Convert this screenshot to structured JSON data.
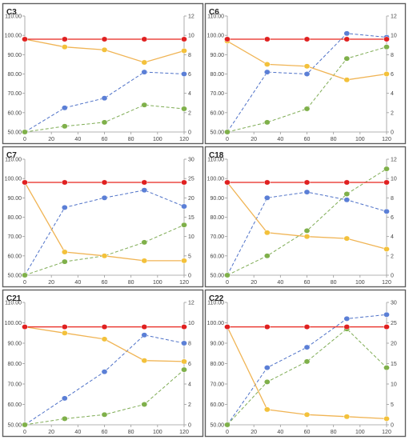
{
  "chart_data": [
    {
      "type": "line",
      "title": "C3",
      "x": [
        0,
        30,
        60,
        90,
        120
      ],
      "xlim": [
        0,
        120
      ],
      "xticks": [
        0,
        20,
        40,
        60,
        80,
        100,
        120
      ],
      "ylim": [
        50,
        110
      ],
      "yticks": [
        "50.00",
        "60.00",
        "70.00",
        "80.00",
        "90.00",
        "100.00",
        "110.00"
      ],
      "y2lim": [
        0,
        12
      ],
      "y2ticks": [
        0,
        2,
        4,
        6,
        8,
        10,
        12
      ],
      "grid": false,
      "legend": "none",
      "series": [
        {
          "axis": "left",
          "color": "#e8241c",
          "marker": "#e02020",
          "dashed": false,
          "values": [
            98,
            98,
            98,
            98,
            98
          ]
        },
        {
          "axis": "left",
          "color": "#f0b454",
          "marker": "#f3c13b",
          "dashed": false,
          "values": [
            98,
            94,
            92.5,
            86,
            92
          ]
        },
        {
          "axis": "right",
          "color": "#4f72c8",
          "marker": "#5b7fd6",
          "dashed": true,
          "values": [
            0,
            2.5,
            3.5,
            6.2,
            6
          ]
        },
        {
          "axis": "right",
          "color": "#7fac55",
          "marker": "#7fb04a",
          "dashed": true,
          "values": [
            0,
            0.6,
            1,
            2.8,
            2.4
          ]
        }
      ]
    },
    {
      "type": "line",
      "title": "C6",
      "x": [
        0,
        30,
        60,
        90,
        120
      ],
      "xlim": [
        0,
        120
      ],
      "xticks": [
        0,
        20,
        40,
        60,
        80,
        100,
        120
      ],
      "ylim": [
        50,
        110
      ],
      "yticks": [
        "50.00",
        "60.00",
        "70.00",
        "80.00",
        "90.00",
        "100.00",
        "110.00"
      ],
      "y2lim": [
        0,
        12
      ],
      "y2ticks": [
        0,
        2,
        4,
        6,
        8,
        10,
        12
      ],
      "grid": false,
      "legend": "none",
      "series": [
        {
          "axis": "left",
          "color": "#e8241c",
          "marker": "#e02020",
          "dashed": false,
          "values": [
            98,
            98,
            98,
            98,
            98
          ]
        },
        {
          "axis": "left",
          "color": "#f0b454",
          "marker": "#f3c13b",
          "dashed": false,
          "values": [
            97,
            85,
            84,
            77,
            80
          ]
        },
        {
          "axis": "right",
          "color": "#4f72c8",
          "marker": "#5b7fd6",
          "dashed": true,
          "values": [
            0,
            6.2,
            6,
            10.2,
            9.8
          ]
        },
        {
          "axis": "right",
          "color": "#7fac55",
          "marker": "#7fb04a",
          "dashed": true,
          "values": [
            0,
            1,
            2.4,
            7.6,
            8.8
          ]
        }
      ]
    },
    {
      "type": "line",
      "title": "C7",
      "x": [
        0,
        30,
        60,
        90,
        120
      ],
      "xlim": [
        0,
        120
      ],
      "xticks": [
        0,
        20,
        40,
        60,
        80,
        100,
        120
      ],
      "ylim": [
        50,
        110
      ],
      "yticks": [
        "50.00",
        "60.00",
        "70.00",
        "80.00",
        "90.00",
        "100.00",
        "110.00"
      ],
      "y2lim": [
        0,
        30
      ],
      "y2ticks": [
        0,
        5,
        10,
        15,
        20,
        25,
        30
      ],
      "grid": false,
      "legend": "none",
      "series": [
        {
          "axis": "left",
          "color": "#e8241c",
          "marker": "#e02020",
          "dashed": false,
          "values": [
            98,
            98,
            98,
            98,
            98
          ]
        },
        {
          "axis": "left",
          "color": "#f0b454",
          "marker": "#f3c13b",
          "dashed": false,
          "values": [
            98,
            62,
            60,
            57.5,
            57.5
          ]
        },
        {
          "axis": "right",
          "color": "#4f72c8",
          "marker": "#5b7fd6",
          "dashed": true,
          "values": [
            0,
            17.5,
            20,
            22,
            17.8
          ]
        },
        {
          "axis": "right",
          "color": "#7fac55",
          "marker": "#7fb04a",
          "dashed": true,
          "values": [
            0,
            3.5,
            5,
            8.5,
            13
          ]
        }
      ]
    },
    {
      "type": "line",
      "title": "C18",
      "x": [
        0,
        30,
        60,
        90,
        120
      ],
      "xlim": [
        0,
        120
      ],
      "xticks": [
        0,
        20,
        40,
        60,
        80,
        100,
        120
      ],
      "ylim": [
        50,
        110
      ],
      "yticks": [
        "50.00",
        "60.00",
        "70.00",
        "80.00",
        "90.00",
        "100.00",
        "110.00"
      ],
      "y2lim": [
        0,
        12
      ],
      "y2ticks": [
        0,
        2,
        4,
        6,
        8,
        10,
        12
      ],
      "grid": false,
      "legend": "none",
      "series": [
        {
          "axis": "left",
          "color": "#e8241c",
          "marker": "#e02020",
          "dashed": false,
          "values": [
            98,
            98,
            98,
            98,
            98
          ]
        },
        {
          "axis": "left",
          "color": "#f0b454",
          "marker": "#f3c13b",
          "dashed": false,
          "values": [
            98,
            72,
            70,
            69,
            63.5
          ]
        },
        {
          "axis": "right",
          "color": "#4f72c8",
          "marker": "#5b7fd6",
          "dashed": true,
          "values": [
            0,
            8,
            8.6,
            7.8,
            6.6
          ]
        },
        {
          "axis": "right",
          "color": "#7fac55",
          "marker": "#7fb04a",
          "dashed": true,
          "values": [
            0,
            2,
            4.6,
            8.4,
            11
          ]
        }
      ]
    },
    {
      "type": "line",
      "title": "C21",
      "x": [
        0,
        30,
        60,
        90,
        120
      ],
      "xlim": [
        0,
        120
      ],
      "xticks": [
        0,
        20,
        40,
        60,
        80,
        100,
        120
      ],
      "ylim": [
        50,
        110
      ],
      "yticks": [
        "50.00",
        "60.00",
        "70.00",
        "80.00",
        "90.00",
        "100.00",
        "110.00"
      ],
      "y2lim": [
        0,
        12
      ],
      "y2ticks": [
        0,
        2,
        4,
        6,
        8,
        10,
        12
      ],
      "grid": false,
      "legend": "none",
      "series": [
        {
          "axis": "left",
          "color": "#e8241c",
          "marker": "#e02020",
          "dashed": false,
          "values": [
            98,
            98,
            98,
            98,
            98
          ]
        },
        {
          "axis": "left",
          "color": "#f0b454",
          "marker": "#f3c13b",
          "dashed": false,
          "values": [
            98,
            95,
            92,
            81.5,
            81
          ]
        },
        {
          "axis": "right",
          "color": "#4f72c8",
          "marker": "#5b7fd6",
          "dashed": true,
          "values": [
            0,
            2.6,
            5.2,
            8.8,
            8
          ]
        },
        {
          "axis": "right",
          "color": "#7fac55",
          "marker": "#7fb04a",
          "dashed": true,
          "values": [
            0,
            0.6,
            1,
            2,
            5.4
          ]
        }
      ]
    },
    {
      "type": "line",
      "title": "C22",
      "x": [
        0,
        30,
        60,
        90,
        120
      ],
      "xlim": [
        0,
        120
      ],
      "xticks": [
        0,
        20,
        40,
        60,
        80,
        100,
        120
      ],
      "ylim": [
        50,
        110
      ],
      "yticks": [
        "50.00",
        "60.00",
        "70.00",
        "80.00",
        "90.00",
        "100.00",
        "110.00"
      ],
      "y2lim": [
        0,
        30
      ],
      "y2ticks": [
        0,
        5,
        10,
        15,
        20,
        25,
        30
      ],
      "grid": false,
      "legend": "none",
      "series": [
        {
          "axis": "left",
          "color": "#e8241c",
          "marker": "#e02020",
          "dashed": false,
          "values": [
            98,
            98,
            98,
            98,
            98
          ]
        },
        {
          "axis": "left",
          "color": "#f0b454",
          "marker": "#f3c13b",
          "dashed": false,
          "values": [
            98,
            57.5,
            55,
            54,
            53
          ]
        },
        {
          "axis": "right",
          "color": "#4f72c8",
          "marker": "#5b7fd6",
          "dashed": true,
          "values": [
            0,
            14,
            19,
            26,
            27
          ]
        },
        {
          "axis": "right",
          "color": "#7fac55",
          "marker": "#7fb04a",
          "dashed": true,
          "values": [
            0,
            10.5,
            15.5,
            23.5,
            14
          ]
        }
      ]
    }
  ]
}
